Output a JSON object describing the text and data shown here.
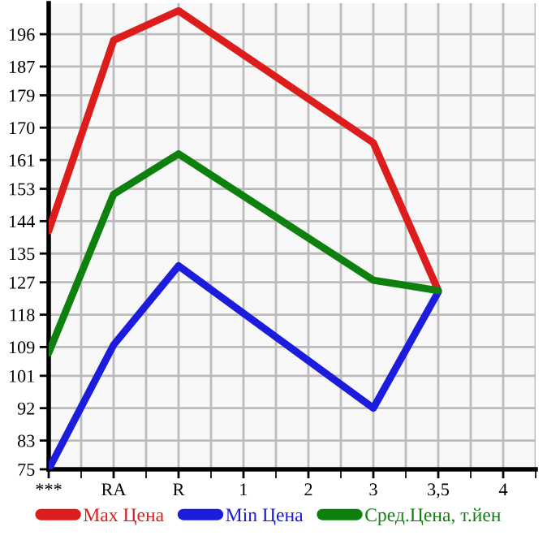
{
  "chart_data": {
    "type": "line",
    "categories": [
      "***",
      "RA",
      "R",
      "1",
      "2",
      "3",
      "3,5",
      "4"
    ],
    "series": [
      {
        "name": "Max Цена",
        "color": "#dd1c1c",
        "values": [
          141.3,
          194.3,
          202.5,
          null,
          null,
          165.8,
          124.7,
          null
        ]
      },
      {
        "name": "Min Цена",
        "color": "#1c1cdd",
        "values": [
          75,
          109.6,
          131.6,
          null,
          null,
          92,
          124.3,
          null
        ]
      },
      {
        "name": "Сред.Цена, т.йен",
        "color": "#0d800d",
        "values": [
          107.4,
          151.5,
          162.7,
          null,
          null,
          127.6,
          124.7,
          null
        ]
      }
    ],
    "ylim": [
      75,
      204.6
    ],
    "yticks": [
      75,
      83,
      92,
      101,
      109,
      118,
      127,
      135,
      144,
      153,
      161,
      170,
      179,
      187,
      196
    ],
    "grid": true,
    "legend": "bottom",
    "marker": "none",
    "line_style": "solid"
  }
}
